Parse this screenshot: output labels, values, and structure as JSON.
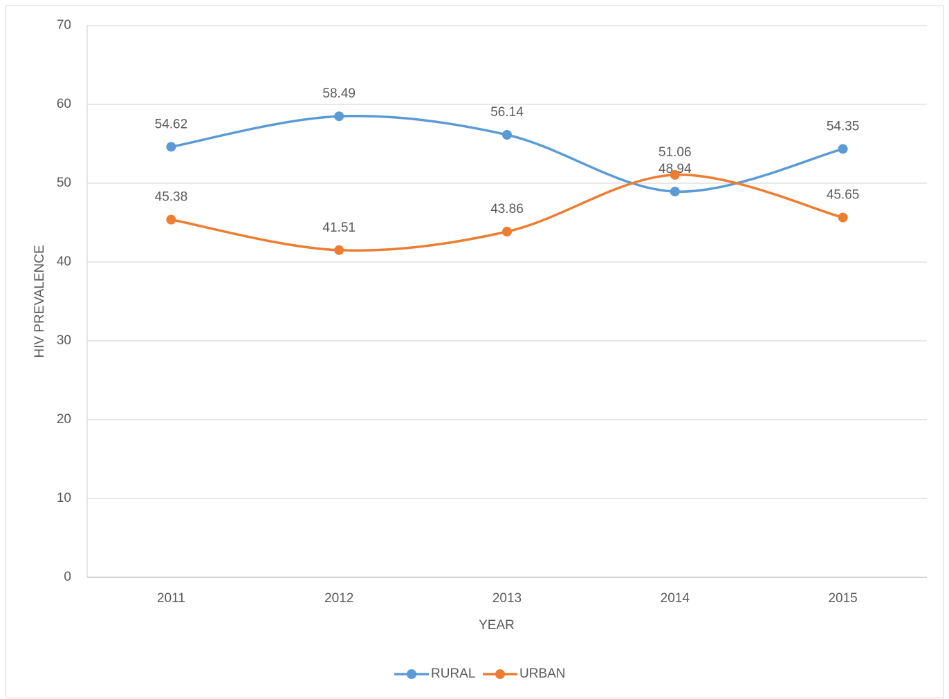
{
  "chart_data": {
    "type": "line",
    "x_label": "YEAR",
    "y_label": "HIV PREVALENCE",
    "categories": [
      "2011",
      "2012",
      "2013",
      "2014",
      "2015"
    ],
    "series": [
      {
        "name": "RURAL",
        "color": "#5b9bd5",
        "values": [
          54.62,
          58.49,
          56.14,
          48.94,
          54.35
        ]
      },
      {
        "name": "URBAN",
        "color": "#ed7d31",
        "values": [
          45.38,
          41.51,
          43.86,
          51.06,
          45.65
        ]
      }
    ],
    "ylim": [
      0,
      70
    ],
    "yticks": [
      0,
      10,
      20,
      30,
      40,
      50,
      60,
      70
    ],
    "grid": true,
    "smooth": true,
    "legend": "bottom"
  }
}
